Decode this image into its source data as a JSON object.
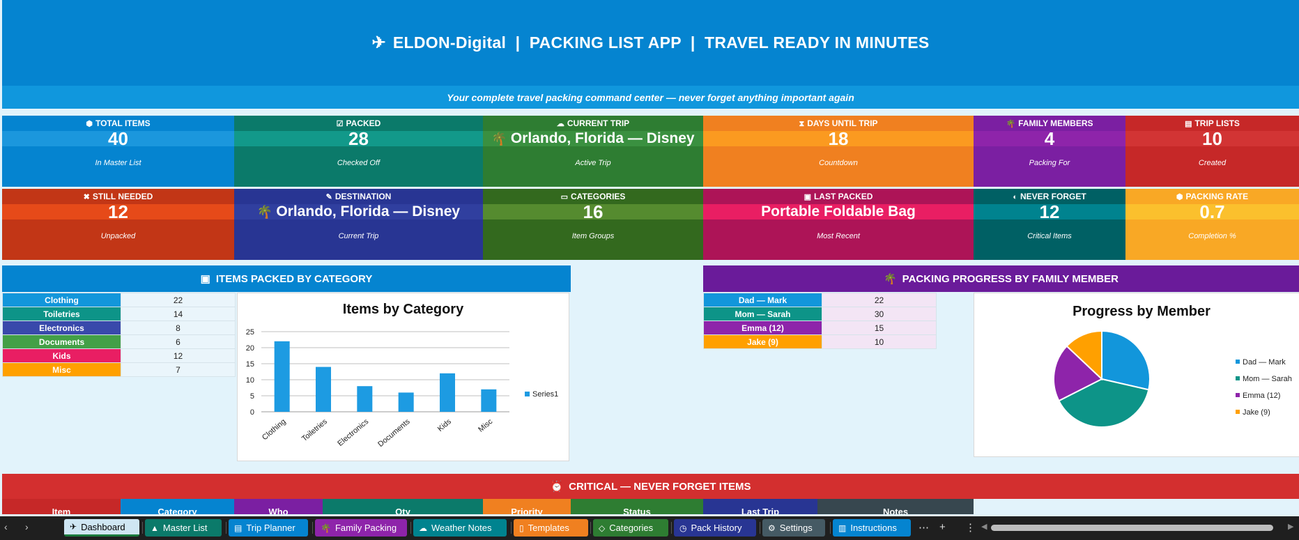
{
  "header": {
    "title": "ELDON-Digital  |  PACKING LIST APP  |  TRAVEL READY IN MINUTES",
    "subtitle": "Your complete travel packing command center — never forget anything important again"
  },
  "kpis_row1": [
    {
      "label": "TOTAL ITEMS",
      "icon": "box-icon",
      "glyph": "⬢",
      "value": "40",
      "sub": "In Master List",
      "bg": "#0584d0",
      "valbg": "#1b97dd"
    },
    {
      "label": "PACKED",
      "icon": "checkbox-icon",
      "glyph": "☑",
      "value": "28",
      "sub": "Checked Off",
      "bg": "#0b7a6a",
      "valbg": "#12998a"
    },
    {
      "label": "CURRENT TRIP",
      "icon": "cloud-icon",
      "glyph": "☁",
      "value": "Orlando, Florida — Disney",
      "sub": "Active Trip",
      "bg": "#2e7d32",
      "valbg": "#3a9040",
      "palm": true
    },
    {
      "label": "DAYS UNTIL TRIP",
      "icon": "hourglass-icon",
      "glyph": "⧗",
      "value": "18",
      "sub": "Countdown",
      "bg": "#f08020",
      "valbg": "#fb9a20"
    },
    {
      "label": "FAMILY MEMBERS",
      "icon": "palm-tree-icon",
      "glyph": "🌴",
      "value": "4",
      "sub": "Packing For",
      "bg": "#7b1fa2",
      "valbg": "#8e24aa"
    },
    {
      "label": "TRIP LISTS",
      "icon": "clipboard-icon",
      "glyph": "▤",
      "value": "10",
      "sub": "Created",
      "bg": "#c62828",
      "valbg": "#d23434"
    }
  ],
  "kpis_row2": [
    {
      "label": "STILL NEEDED",
      "icon": "x-icon",
      "glyph": "✖",
      "value": "12",
      "sub": "Unpacked",
      "bg": "#c23616",
      "valbg": "#e64a19"
    },
    {
      "label": "DESTINATION",
      "icon": "pin-icon",
      "glyph": "✎",
      "value": "Orlando, Florida — Disney",
      "sub": "Current Trip",
      "bg": "#283593",
      "valbg": "#303f9f",
      "palm": true
    },
    {
      "label": "CATEGORIES",
      "icon": "folder-icon",
      "glyph": "▭",
      "value": "16",
      "sub": "Item Groups",
      "bg": "#33691e",
      "valbg": "#558b2f"
    },
    {
      "label": "LAST PACKED",
      "icon": "suitcase-icon",
      "glyph": "▣",
      "value": "Portable Foldable Bag",
      "sub": "Most Recent",
      "bg": "#ad1457",
      "valbg": "#e91e63"
    },
    {
      "label": "NEVER FORGET",
      "icon": "shield-icon",
      "glyph": "◐",
      "value": "12",
      "sub": "Critical Items",
      "bg": "#006064",
      "valbg": "#00838f"
    },
    {
      "label": "PACKING RATE",
      "icon": "gauge-icon",
      "glyph": "⬢",
      "value": "0.7",
      "sub": "Completion %",
      "bg": "#f9a825",
      "valbg": "#fbc02d"
    }
  ],
  "category_section": {
    "title": "ITEMS PACKED BY CATEGORY",
    "rows": [
      {
        "name": "Clothing",
        "count": "22",
        "color": "#1296db"
      },
      {
        "name": "Toiletries",
        "count": "14",
        "color": "#0d9488"
      },
      {
        "name": "Electronics",
        "count": "8",
        "color": "#3949ab"
      },
      {
        "name": "Documents",
        "count": "6",
        "color": "#43a047"
      },
      {
        "name": "Kids",
        "count": "12",
        "color": "#e91e63"
      },
      {
        "name": "Misc",
        "count": "7",
        "color": "#ffa000"
      }
    ]
  },
  "family_section": {
    "title": "PACKING PROGRESS BY FAMILY MEMBER",
    "rows": [
      {
        "name": "Dad — Mark",
        "count": "22",
        "color": "#1296db"
      },
      {
        "name": "Mom — Sarah",
        "count": "30",
        "color": "#0d9488"
      },
      {
        "name": "Emma (12)",
        "count": "15",
        "color": "#8e24aa"
      },
      {
        "name": "Jake (9)",
        "count": "10",
        "color": "#ffa000"
      }
    ]
  },
  "chart_data": [
    {
      "type": "bar",
      "title": "Items by Category",
      "categories": [
        "Clothing",
        "Toiletries",
        "Electronics",
        "Documents",
        "Kids",
        "Misc"
      ],
      "series": [
        {
          "name": "Series1",
          "values": [
            22,
            14,
            8,
            6,
            12,
            7
          ],
          "color": "#1d9be2"
        }
      ],
      "ylim": [
        0,
        25
      ],
      "yticks": [
        "0",
        "5",
        "10",
        "15",
        "20",
        "25"
      ],
      "grid": true,
      "legend": "right"
    },
    {
      "type": "pie",
      "title": "Progress by Member",
      "categories": [
        "Dad — Mark",
        "Mom — Sarah",
        "Emma (12)",
        "Jake (9)"
      ],
      "values": [
        22,
        30,
        15,
        10
      ],
      "colors": [
        "#1296db",
        "#0d9488",
        "#8e24aa",
        "#ffa000"
      ],
      "legend": "right"
    }
  ],
  "critical": {
    "title": "CRITICAL — NEVER FORGET ITEMS",
    "headers": [
      {
        "label": "Item",
        "color": "#c62828"
      },
      {
        "label": "Category",
        "color": "#0584d0"
      },
      {
        "label": "Who",
        "color": "#7b1fa2"
      },
      {
        "label": "Qty",
        "color": "#0b7a6a"
      },
      {
        "label": "Priority",
        "color": "#f08020"
      },
      {
        "label": "Status",
        "color": "#2e7d32"
      },
      {
        "label": "Last Trip",
        "color": "#283593"
      },
      {
        "label": "Notes",
        "color": "#37474f"
      }
    ]
  },
  "sheet_tabs": [
    {
      "label": "Dashboard",
      "icon": "plane-icon",
      "glyph": "✈",
      "color": "#cfe6f3",
      "active": true
    },
    {
      "label": "Master List",
      "icon": "bag-icon",
      "glyph": "▲",
      "color": "#0b7a6a"
    },
    {
      "label": "Trip Planner",
      "icon": "doc-icon",
      "glyph": "▤",
      "color": "#0584d0"
    },
    {
      "label": "Family Packing",
      "icon": "palm-tree-icon",
      "glyph": "🌴",
      "color": "#8e24aa"
    },
    {
      "label": "Weather Notes",
      "icon": "cloud-icon",
      "glyph": "☁",
      "color": "#00838f"
    },
    {
      "label": "Templates",
      "icon": "page-icon",
      "glyph": "▯",
      "color": "#f08020"
    },
    {
      "label": "Categories",
      "icon": "tag-icon",
      "glyph": "◇",
      "color": "#2e7d32"
    },
    {
      "label": "Pack History",
      "icon": "clock-icon",
      "glyph": "◷",
      "color": "#283593"
    },
    {
      "label": "Settings",
      "icon": "gear-icon",
      "glyph": "⚙",
      "color": "#455a64"
    },
    {
      "label": "Instructions",
      "icon": "book-icon",
      "glyph": "▥",
      "color": "#0584d0"
    }
  ]
}
